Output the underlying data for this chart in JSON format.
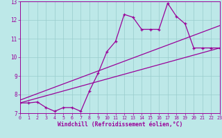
{
  "xlabel": "Windchill (Refroidissement éolien,°C)",
  "bg_color": "#bde8e8",
  "line_color": "#990099",
  "grid_color": "#99cccc",
  "xlim": [
    0,
    23
  ],
  "ylim": [
    7,
    13
  ],
  "xtick_vals": [
    0,
    1,
    2,
    3,
    4,
    5,
    6,
    7,
    8,
    9,
    10,
    11,
    12,
    13,
    14,
    15,
    16,
    17,
    18,
    19,
    20,
    21,
    22,
    23
  ],
  "ytick_vals": [
    7,
    8,
    9,
    10,
    11,
    12,
    13
  ],
  "main_x": [
    0,
    1,
    2,
    3,
    4,
    5,
    6,
    7,
    8,
    9,
    10,
    11,
    12,
    13,
    14,
    15,
    16,
    17,
    18,
    19,
    20,
    21,
    22,
    23
  ],
  "main_y": [
    7.55,
    7.55,
    7.6,
    7.3,
    7.1,
    7.3,
    7.3,
    7.1,
    8.2,
    9.15,
    10.3,
    10.85,
    12.3,
    12.15,
    11.5,
    11.5,
    11.5,
    12.9,
    12.2,
    11.8,
    10.5,
    10.5,
    10.5,
    10.5
  ],
  "trend1_x": [
    0,
    23
  ],
  "trend1_y": [
    7.7,
    11.7
  ],
  "trend2_x": [
    0,
    23
  ],
  "trend2_y": [
    7.55,
    10.5
  ]
}
